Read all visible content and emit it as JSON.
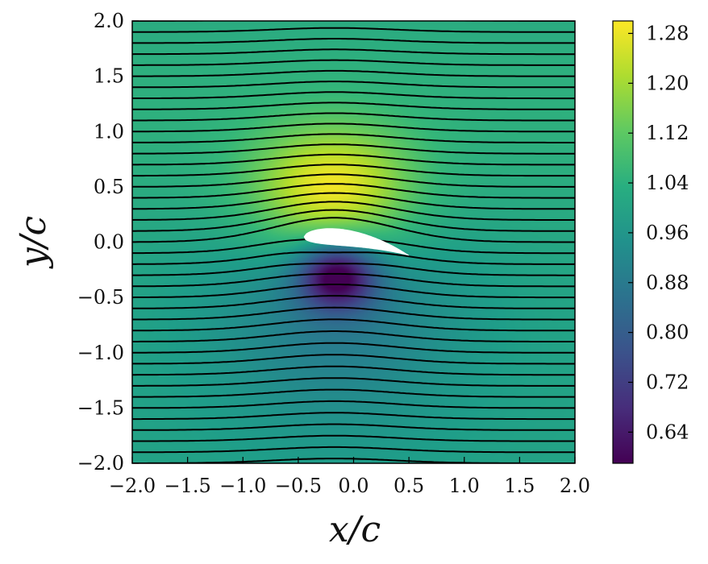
{
  "chart_data": {
    "type": "heatmap",
    "title": "",
    "xlabel": "x/c",
    "ylabel": "y/c",
    "xlim": [
      -2.0,
      2.0
    ],
    "ylim": [
      -2.0,
      2.0
    ],
    "x_ticks": [
      "−2.0",
      "−1.5",
      "−1.0",
      "−0.5",
      "0.0",
      "0.5",
      "1.0",
      "1.5",
      "2.0"
    ],
    "y_ticks": [
      "2.0",
      "1.5",
      "1.0",
      "0.5",
      "0.0",
      "−0.5",
      "−1.0",
      "−1.5",
      "−2.0"
    ],
    "colorbar": {
      "colormap": "viridis",
      "range": [
        0.59,
        1.3
      ],
      "ticks": [
        "1.28",
        "1.20",
        "1.12",
        "1.04",
        "0.96",
        "0.88",
        "0.80",
        "0.72",
        "0.64"
      ]
    },
    "field_features": {
      "freestream_value": 1.0,
      "max_value": 1.3,
      "max_location": [
        -0.2,
        0.45
      ],
      "min_value": 0.6,
      "min_location": [
        -0.15,
        -0.3
      ]
    },
    "airfoil": {
      "leading_edge": [
        -0.45,
        0.05
      ],
      "trailing_edge": [
        0.5,
        -0.12
      ],
      "color": "#ffffff"
    },
    "streamlines": {
      "count": 41,
      "spacing": 0.1,
      "color": "#000000"
    },
    "grid": false
  }
}
